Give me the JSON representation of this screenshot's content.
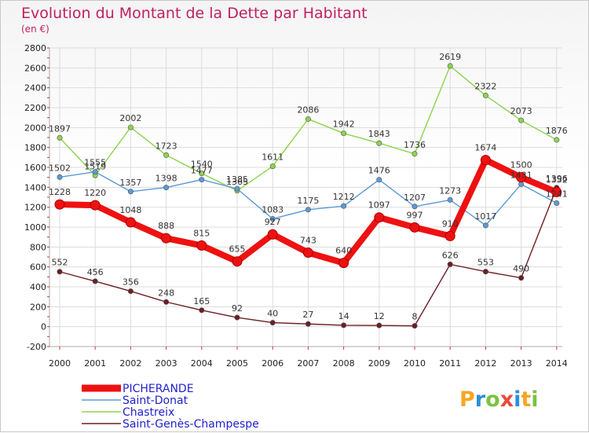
{
  "chart_data": {
    "type": "line",
    "title": "Evolution du Montant de la Dette par Habitant",
    "subtitle": "(en €)",
    "xlabel": "",
    "ylabel": "",
    "categories": [
      "2000",
      "2001",
      "2002",
      "2003",
      "2004",
      "2005",
      "2006",
      "2007",
      "2008",
      "2009",
      "2010",
      "2011",
      "2012",
      "2013",
      "2014"
    ],
    "ylim": [
      -200,
      2800
    ],
    "yticks": [
      -200,
      0,
      200,
      400,
      600,
      800,
      1000,
      1200,
      1400,
      1600,
      1800,
      2000,
      2200,
      2400,
      2600,
      2800
    ],
    "grid": true,
    "legend_position": "bottom-left",
    "series": [
      {
        "name": "Chastreix",
        "color": "#8ed34f",
        "values": [
          1897,
          1519,
          2002,
          1723,
          1540,
          1365,
          1611,
          2086,
          1942,
          1843,
          1736,
          2619,
          2322,
          2073,
          1876
        ],
        "labels": [
          "1897",
          "1519",
          "2002",
          "1723",
          "1540",
          "1365",
          "1611",
          "2086",
          "1942",
          "1843",
          "1736",
          "2619",
          "2322",
          "2073",
          "1876"
        ]
      },
      {
        "name": "Saint-Donat",
        "color": "#5b9bd5",
        "values": [
          1502,
          1555,
          1357,
          1398,
          1477,
          1385,
          1083,
          1175,
          1212,
          1476,
          1207,
          1273,
          1017,
          1431,
          1241
        ],
        "labels": [
          "1502",
          "1555",
          "1357",
          "1398",
          "1477",
          "1385",
          "1083",
          "1175",
          "1212",
          "1476",
          "1207",
          "1273",
          "1017",
          "1431",
          "1241"
        ]
      },
      {
        "name": "Saint-Genès-Champespe",
        "color": "#6b1e24",
        "values": [
          552,
          456,
          356,
          248,
          165,
          92,
          40,
          27,
          14,
          12,
          8,
          626,
          553,
          490,
          1396
        ],
        "labels": [
          "552",
          "456",
          "356",
          "248",
          "165",
          "92",
          "40",
          "27",
          "14",
          "12",
          "8",
          "626",
          "553",
          "490",
          "1396"
        ]
      },
      {
        "name": "PICHERANDE",
        "color": "#ee1111",
        "values": [
          1228,
          1220,
          1048,
          888,
          815,
          655,
          927,
          743,
          640,
          1097,
          997,
          910,
          1674,
          1500,
          1352
        ],
        "labels": [
          "1228",
          "1220",
          "1048",
          "888",
          "815",
          "655",
          "927",
          "743",
          "640",
          "1097",
          "997",
          "910",
          "1674",
          "1500",
          "1352"
        ]
      }
    ],
    "legend": [
      {
        "name": "PICHERANDE",
        "color": "#ee1111",
        "thick": true
      },
      {
        "name": "Saint-Donat",
        "color": "#5b9bd5",
        "thick": false
      },
      {
        "name": "Chastreix",
        "color": "#8ed34f",
        "thick": false
      },
      {
        "name": "Saint-Genès-Champespe",
        "color": "#6b1e24",
        "thick": false
      }
    ]
  },
  "logo": {
    "text": "Proxiti"
  }
}
